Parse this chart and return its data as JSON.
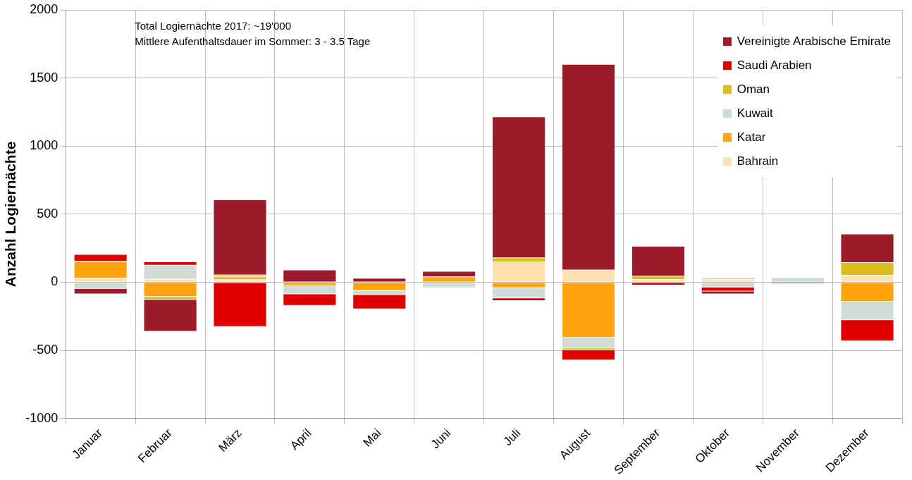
{
  "chart_data": {
    "type": "bar",
    "stacked": true,
    "ylabel": "Anzahl Logiernächte",
    "annotations": [
      "Total Logiernächte 2017: ~19'000",
      "Mittlere Aufenthaltsdauer im Sommer: 3 - 3.5 Tage"
    ],
    "categories": [
      "Januar",
      "Februar",
      "März",
      "April",
      "Mai",
      "Juni",
      "Juli",
      "August",
      "September",
      "Oktober",
      "November",
      "Dezember"
    ],
    "series": [
      {
        "name": "Bahrain",
        "color": "#ffe0b0",
        "values": [
          30,
          25,
          20,
          null,
          null,
          null,
          150,
          90,
          20,
          20,
          null,
          50
        ]
      },
      {
        "name": "Katar",
        "color": "#ffa40e",
        "values": [
          125,
          -105,
          20,
          -25,
          -60,
          40,
          -40,
          -405,
          null,
          null,
          null,
          -140
        ]
      },
      {
        "name": "Kuwait",
        "color": "#cfdcd5",
        "values": [
          -45,
          100,
          null,
          -60,
          -30,
          -40,
          -75,
          -75,
          null,
          -35,
          35,
          -135
        ]
      },
      {
        "name": "Oman",
        "color": "#d9c020",
        "values": [
          null,
          -20,
          15,
          null,
          null,
          null,
          30,
          -15,
          25,
          10,
          null,
          95
        ]
      },
      {
        "name": "Saudi Arabien",
        "color": "#e00000",
        "values": [
          50,
          25,
          -325,
          -85,
          -105,
          null,
          -20,
          -75,
          -20,
          -30,
          null,
          -155
        ]
      },
      {
        "name": "Vereinigte Arabische Emirate",
        "color": "#9b1b2b",
        "values": [
          -40,
          -235,
          550,
          90,
          30,
          40,
          1035,
          1510,
          220,
          -20,
          -10,
          210
        ]
      }
    ],
    "ylim": [
      -1000,
      2000
    ],
    "yticks": [
      -1000,
      -500,
      0,
      500,
      1000,
      1500,
      2000
    ],
    "grid": true,
    "legend": "top right"
  }
}
